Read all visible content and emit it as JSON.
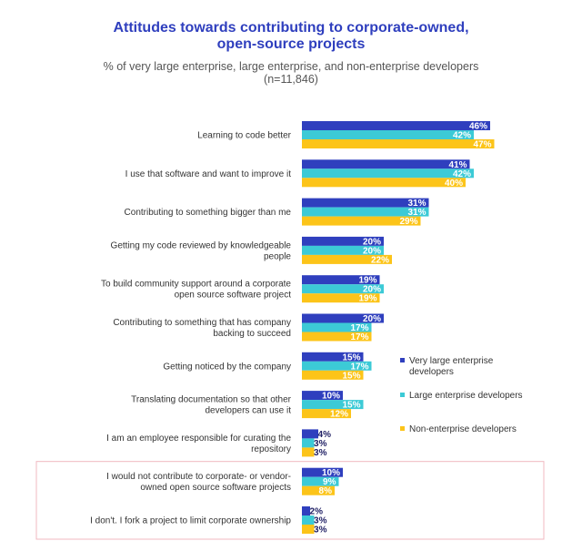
{
  "chart_data": {
    "type": "bar",
    "orientation": "horizontal",
    "title": [
      "Attitudes towards contributing to corporate-owned,",
      "open-source projects"
    ],
    "subtitle": [
      "% of very large enterprise, large enterprise, and non-enterprise developers",
      "(n=11,846)"
    ],
    "categories": [
      [
        "Learning to code better"
      ],
      [
        "I use that software and want to improve it"
      ],
      [
        "Contributing to something bigger than me"
      ],
      [
        "Getting my code reviewed by knowledgeable",
        "people"
      ],
      [
        "To build community support around a corporate",
        "open source software project"
      ],
      [
        "Contributing to something that has company",
        "backing to succeed"
      ],
      [
        "Getting noticed by the company"
      ],
      [
        "Translating documentation so that other",
        "developers can use it"
      ],
      [
        "I am an employee responsible for curating the",
        "repository"
      ],
      [
        "I would not contribute to corporate- or vendor-",
        "owned open source software projects"
      ],
      [
        "I don't. I fork a project to limit corporate ownership"
      ]
    ],
    "series": [
      {
        "name": "Very large enterprise developers",
        "legend_lines": [
          "Very large enterprise",
          "developers"
        ],
        "color": "#2f3fbe",
        "values": [
          46,
          41,
          31,
          20,
          19,
          20,
          15,
          10,
          4,
          10,
          2
        ],
        "labels": [
          "46%",
          "41%",
          "31%",
          "20%",
          "19%",
          "20%",
          "15%",
          "10%",
          "4%",
          "10%",
          "2%"
        ]
      },
      {
        "name": "Large enterprise developers",
        "legend_lines": [
          "Large enterprise developers"
        ],
        "color": "#3ccad6",
        "values": [
          42,
          42,
          31,
          20,
          20,
          17,
          17,
          15,
          3,
          9,
          3
        ],
        "labels": [
          "42%",
          "42%",
          "31%",
          "20%",
          "20%",
          "17%",
          "17%",
          "15%",
          "3%",
          "9%",
          "3%"
        ]
      },
      {
        "name": "Non-enterprise developers",
        "legend_lines": [
          "Non-enterprise developers"
        ],
        "color": "#fcc419",
        "values": [
          47,
          40,
          29,
          22,
          19,
          17,
          15,
          12,
          3,
          8,
          3
        ],
        "labels": [
          "47%",
          "40%",
          "29%",
          "22%",
          "19%",
          "17%",
          "15%",
          "12%",
          "3%",
          "8%",
          "3%"
        ]
      }
    ],
    "highlighted_categories": [
      9,
      10
    ],
    "highlight_color": "#f0b8c0",
    "legend_position": "right",
    "grid": false,
    "xlim": [
      0,
      47
    ]
  }
}
